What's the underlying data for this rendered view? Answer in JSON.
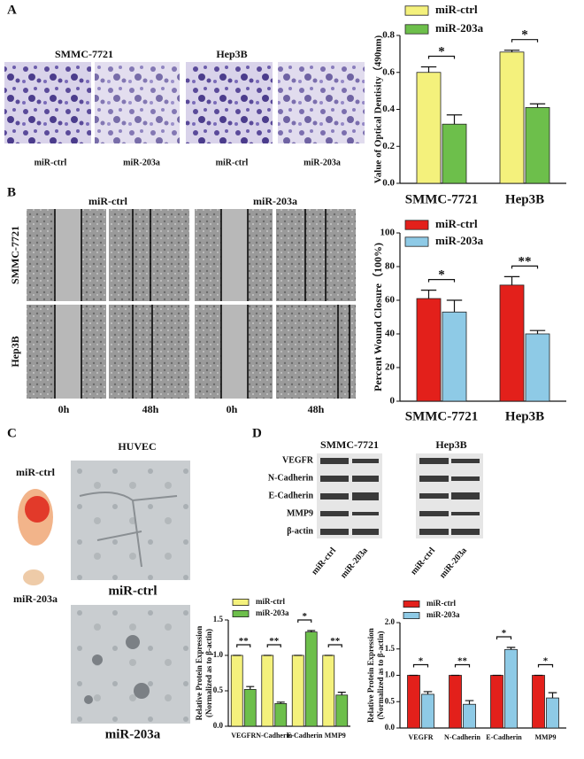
{
  "panels": {
    "a": {
      "letter": "A",
      "cell_lines": [
        "SMMC-7721",
        "Hep3B"
      ],
      "image_labels": [
        "miR-ctrl",
        "miR-203a",
        "miR-ctrl",
        "miR-203a"
      ]
    },
    "b": {
      "letter": "B",
      "groups": [
        "miR-ctrl",
        "miR-203a"
      ],
      "rows": [
        "SMMC-7721",
        "Hep3B"
      ],
      "times": [
        "0h",
        "48h",
        "0h",
        "48h"
      ]
    },
    "c": {
      "letter": "C",
      "title": "HUVEC",
      "tissue_labels": [
        "miR-ctrl",
        "miR-203a"
      ],
      "image_labels": [
        "miR-ctrl",
        "miR-203a"
      ]
    },
    "d": {
      "letter": "D",
      "blots": [
        "SMMC-7721",
        "Hep3B"
      ],
      "proteins": [
        "VEGFR",
        "N-Cadherin",
        "E-Cadherin",
        "MMP9",
        "β-actin"
      ],
      "lanes": [
        "miR-ctrl",
        "miR-203a",
        "miR-ctrl",
        "miR-203a"
      ]
    }
  },
  "chart_data": [
    {
      "type": "bar",
      "ylabel": "Value of Optical Dentisity（490nm)",
      "categories": [
        "SMMC-7721",
        "Hep3B"
      ],
      "series": [
        {
          "name": "miR-ctrl",
          "color": "#f4f17c",
          "values": [
            0.6,
            0.71
          ],
          "errors": [
            0.03,
            0.01
          ]
        },
        {
          "name": "miR-203a",
          "color": "#6dbf4b",
          "values": [
            0.32,
            0.41
          ],
          "errors": [
            0.05,
            0.02
          ]
        }
      ],
      "ylim": [
        0,
        0.8
      ],
      "yticks": [
        {
          "value": 0,
          "label": "0.0"
        },
        0.2,
        0.4,
        0.6,
        0.8
      ],
      "significance": [
        "*",
        "*"
      ]
    },
    {
      "type": "bar",
      "ylabel": "Percent Wound Closure（100%)",
      "categories": [
        "SMMC-7721",
        "Hep3B"
      ],
      "series": [
        {
          "name": "miR-ctrl",
          "color": "#e3201b",
          "values": [
            61,
            69
          ],
          "errors": [
            5,
            5
          ]
        },
        {
          "name": "miR-203a",
          "color": "#8ecae6",
          "values": [
            53,
            40
          ],
          "errors": [
            7,
            2
          ]
        }
      ],
      "ylim": [
        0,
        100
      ],
      "yticks": [
        0,
        20,
        40,
        60,
        80,
        100
      ],
      "significance": [
        "*",
        "**"
      ]
    },
    {
      "type": "bar",
      "ylabel": [
        "Relative Protein Expression",
        "(Normalized as to β-actin)"
      ],
      "categories": [
        "VEGFR",
        "N-Cadherin",
        "E-Cadherin",
        "MMP9"
      ],
      "series": [
        {
          "name": "miR-ctrl",
          "color": "#f4f17c",
          "values": [
            1,
            1,
            1,
            1
          ],
          "errors": [
            0,
            0,
            0,
            0
          ]
        },
        {
          "name": "miR-203a",
          "color": "#6dbf4b",
          "values": [
            0.52,
            0.32,
            1.33,
            0.44
          ],
          "errors": [
            0.04,
            0.02,
            0.02,
            0.04
          ]
        }
      ],
      "ylim": [
        0,
        1.5
      ],
      "yticks": [
        {
          "value": 0,
          "label": "0.0"
        },
        0.5,
        {
          "value": 1,
          "label": "1.0"
        },
        1.5
      ],
      "significance": [
        "**",
        "**",
        "*",
        "**"
      ]
    },
    {
      "type": "bar",
      "ylabel": [
        "Relative Protein Expression",
        "(Normalized as to β-actin)"
      ],
      "categories": [
        "VEGFR",
        "N-Cadherin",
        "E-Cadherin",
        "MMP9"
      ],
      "series": [
        {
          "name": "miR-ctrl",
          "color": "#e3201b",
          "values": [
            1,
            1,
            1,
            1
          ],
          "errors": [
            0,
            0,
            0,
            0
          ]
        },
        {
          "name": "miR-203a",
          "color": "#8ecae6",
          "values": [
            0.64,
            0.45,
            1.49,
            0.57
          ],
          "errors": [
            0.05,
            0.07,
            0.04,
            0.1
          ]
        }
      ],
      "ylim": [
        0,
        2.0
      ],
      "yticks": [
        {
          "value": 0,
          "label": "0.0"
        },
        0.5,
        {
          "value": 1,
          "label": "1.0"
        },
        1.5,
        {
          "value": 2,
          "label": "2.0"
        }
      ],
      "significance": [
        "*",
        "**",
        "*",
        "*"
      ]
    }
  ]
}
